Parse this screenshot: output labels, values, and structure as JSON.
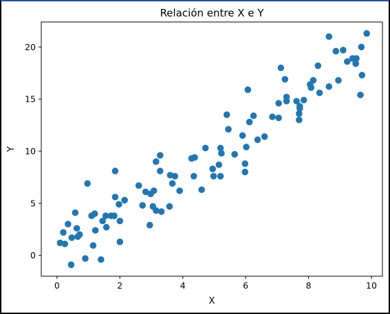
{
  "chart_data": {
    "type": "scatter",
    "title": "Relación entre X e Y",
    "xlabel": "X",
    "ylabel": "Y",
    "xlim": [
      -0.5,
      10.35
    ],
    "ylim": [
      -2.0,
      22.4
    ],
    "xticks": [
      0,
      2,
      4,
      6,
      8,
      10
    ],
    "yticks": [
      0,
      5,
      10,
      15,
      20
    ],
    "grid": false,
    "marker_color": "#1f77b4",
    "points": [
      [
        0.1,
        1.2
      ],
      [
        0.2,
        2.2
      ],
      [
        0.25,
        1.1
      ],
      [
        0.35,
        3.0
      ],
      [
        0.45,
        -0.9
      ],
      [
        0.47,
        1.7
      ],
      [
        0.58,
        4.1
      ],
      [
        0.63,
        2.6
      ],
      [
        0.66,
        1.8
      ],
      [
        0.72,
        2.0
      ],
      [
        0.9,
        -0.3
      ],
      [
        0.97,
        6.9
      ],
      [
        1.1,
        3.8
      ],
      [
        1.15,
        0.95
      ],
      [
        1.2,
        4.0
      ],
      [
        1.22,
        2.4
      ],
      [
        1.4,
        -0.4
      ],
      [
        1.45,
        3.3
      ],
      [
        1.55,
        3.8
      ],
      [
        1.57,
        2.7
      ],
      [
        1.72,
        3.8
      ],
      [
        1.82,
        3.8
      ],
      [
        1.85,
        8.1
      ],
      [
        1.85,
        5.6
      ],
      [
        1.97,
        4.9
      ],
      [
        2.0,
        3.3
      ],
      [
        2.0,
        1.3
      ],
      [
        2.15,
        5.3
      ],
      [
        2.6,
        6.7
      ],
      [
        2.72,
        4.8
      ],
      [
        2.82,
        6.1
      ],
      [
        2.95,
        2.9
      ],
      [
        2.98,
        5.9
      ],
      [
        3.05,
        4.7
      ],
      [
        3.08,
        6.2
      ],
      [
        3.15,
        4.3
      ],
      [
        3.15,
        9.0
      ],
      [
        3.28,
        8.1
      ],
      [
        3.28,
        9.6
      ],
      [
        3.32,
        4.2
      ],
      [
        3.58,
        4.7
      ],
      [
        3.6,
        7.7
      ],
      [
        3.67,
        6.9
      ],
      [
        3.75,
        7.6
      ],
      [
        3.9,
        6.2
      ],
      [
        4.28,
        9.3
      ],
      [
        4.35,
        7.6
      ],
      [
        4.38,
        9.4
      ],
      [
        4.6,
        6.3
      ],
      [
        4.72,
        10.3
      ],
      [
        4.95,
        8.3
      ],
      [
        4.98,
        7.6
      ],
      [
        5.15,
        8.7
      ],
      [
        5.2,
        7.6
      ],
      [
        5.2,
        10.3
      ],
      [
        5.23,
        9.8
      ],
      [
        5.4,
        13.5
      ],
      [
        5.45,
        12.1
      ],
      [
        5.65,
        9.7
      ],
      [
        5.9,
        11.5
      ],
      [
        5.98,
        8.0
      ],
      [
        5.98,
        8.8
      ],
      [
        6.02,
        10.4
      ],
      [
        6.07,
        15.9
      ],
      [
        6.12,
        12.8
      ],
      [
        6.25,
        13.4
      ],
      [
        6.38,
        11.1
      ],
      [
        6.6,
        11.4
      ],
      [
        6.85,
        13.3
      ],
      [
        7.05,
        14.6
      ],
      [
        7.05,
        13.2
      ],
      [
        7.12,
        18.0
      ],
      [
        7.25,
        16.9
      ],
      [
        7.3,
        15.2
      ],
      [
        7.3,
        14.8
      ],
      [
        7.62,
        14.8
      ],
      [
        7.7,
        13.6
      ],
      [
        7.7,
        13.0
      ],
      [
        7.72,
        14.1
      ],
      [
        7.72,
        14.3
      ],
      [
        7.85,
        14.9
      ],
      [
        8.05,
        16.4
      ],
      [
        8.08,
        16.1
      ],
      [
        8.15,
        16.8
      ],
      [
        8.3,
        18.2
      ],
      [
        8.35,
        15.6
      ],
      [
        8.65,
        21.0
      ],
      [
        8.65,
        16.2
      ],
      [
        8.87,
        19.6
      ],
      [
        8.95,
        16.8
      ],
      [
        9.1,
        19.7
      ],
      [
        9.23,
        18.6
      ],
      [
        9.4,
        18.9
      ],
      [
        9.5,
        18.4
      ],
      [
        9.52,
        18.9
      ],
      [
        9.65,
        15.4
      ],
      [
        9.68,
        20.0
      ],
      [
        9.7,
        17.3
      ],
      [
        9.85,
        21.3
      ]
    ]
  }
}
